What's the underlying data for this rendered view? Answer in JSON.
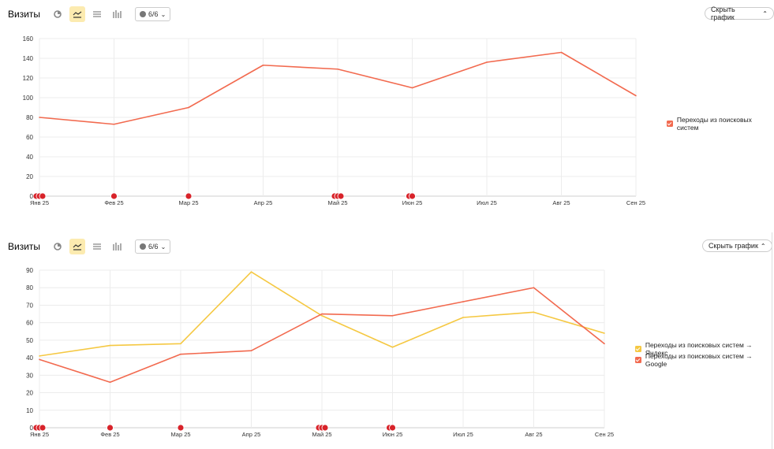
{
  "panels": [
    {
      "title": "Визиты",
      "segments_label": "6/6",
      "hide_label": "Скрыть график",
      "chart_data": {
        "type": "line",
        "categories": [
          "Янв 25",
          "Фев 25",
          "Мар 25",
          "Апр 25",
          "Май 25",
          "Июн 25",
          "Июл 25",
          "Авг 25",
          "Сен 25"
        ],
        "yticks": [
          0,
          20,
          40,
          60,
          80,
          100,
          120,
          140,
          160
        ],
        "ylim": [
          0,
          160
        ],
        "grid": true,
        "legend_position": "right",
        "series": [
          {
            "name": "Переходы из поисковых систем",
            "color": "#f26a4f",
            "values": [
              80,
              73,
              90,
              133,
              129,
              110,
              136,
              146,
              102
            ]
          }
        ],
        "annotation_markers": [
          {
            "category_index": 0,
            "count": 3
          },
          {
            "category_index": 1,
            "count": 1
          },
          {
            "category_index": 2,
            "count": 1
          },
          {
            "category_index": 4,
            "count": 3
          },
          {
            "category_index": 5,
            "count": 2
          }
        ]
      }
    },
    {
      "title": "Визиты",
      "segments_label": "6/6",
      "hide_label": "Скрыть график",
      "chart_data": {
        "type": "line",
        "categories": [
          "Янв 25",
          "Фев 25",
          "Мар 25",
          "Апр 25",
          "Май 25",
          "Июн 25",
          "Июл 25",
          "Авг 25",
          "Сен 25"
        ],
        "yticks": [
          0,
          10,
          20,
          30,
          40,
          50,
          60,
          70,
          80,
          90
        ],
        "ylim": [
          0,
          90
        ],
        "grid": true,
        "legend_position": "right",
        "series": [
          {
            "name": "Переходы из поисковых систем → Яндекс",
            "color": "#f5c842",
            "values": [
              41,
              47,
              48,
              89,
              64,
              46,
              63,
              66,
              54
            ]
          },
          {
            "name": "Переходы из поисковых систем → Google",
            "color": "#f26a4f",
            "values": [
              39,
              26,
              42,
              44,
              65,
              64,
              72,
              80,
              48
            ]
          }
        ],
        "annotation_markers": [
          {
            "category_index": 0,
            "count": 3
          },
          {
            "category_index": 1,
            "count": 1
          },
          {
            "category_index": 2,
            "count": 1
          },
          {
            "category_index": 4,
            "count": 3
          },
          {
            "category_index": 5,
            "count": 2
          }
        ]
      }
    }
  ]
}
